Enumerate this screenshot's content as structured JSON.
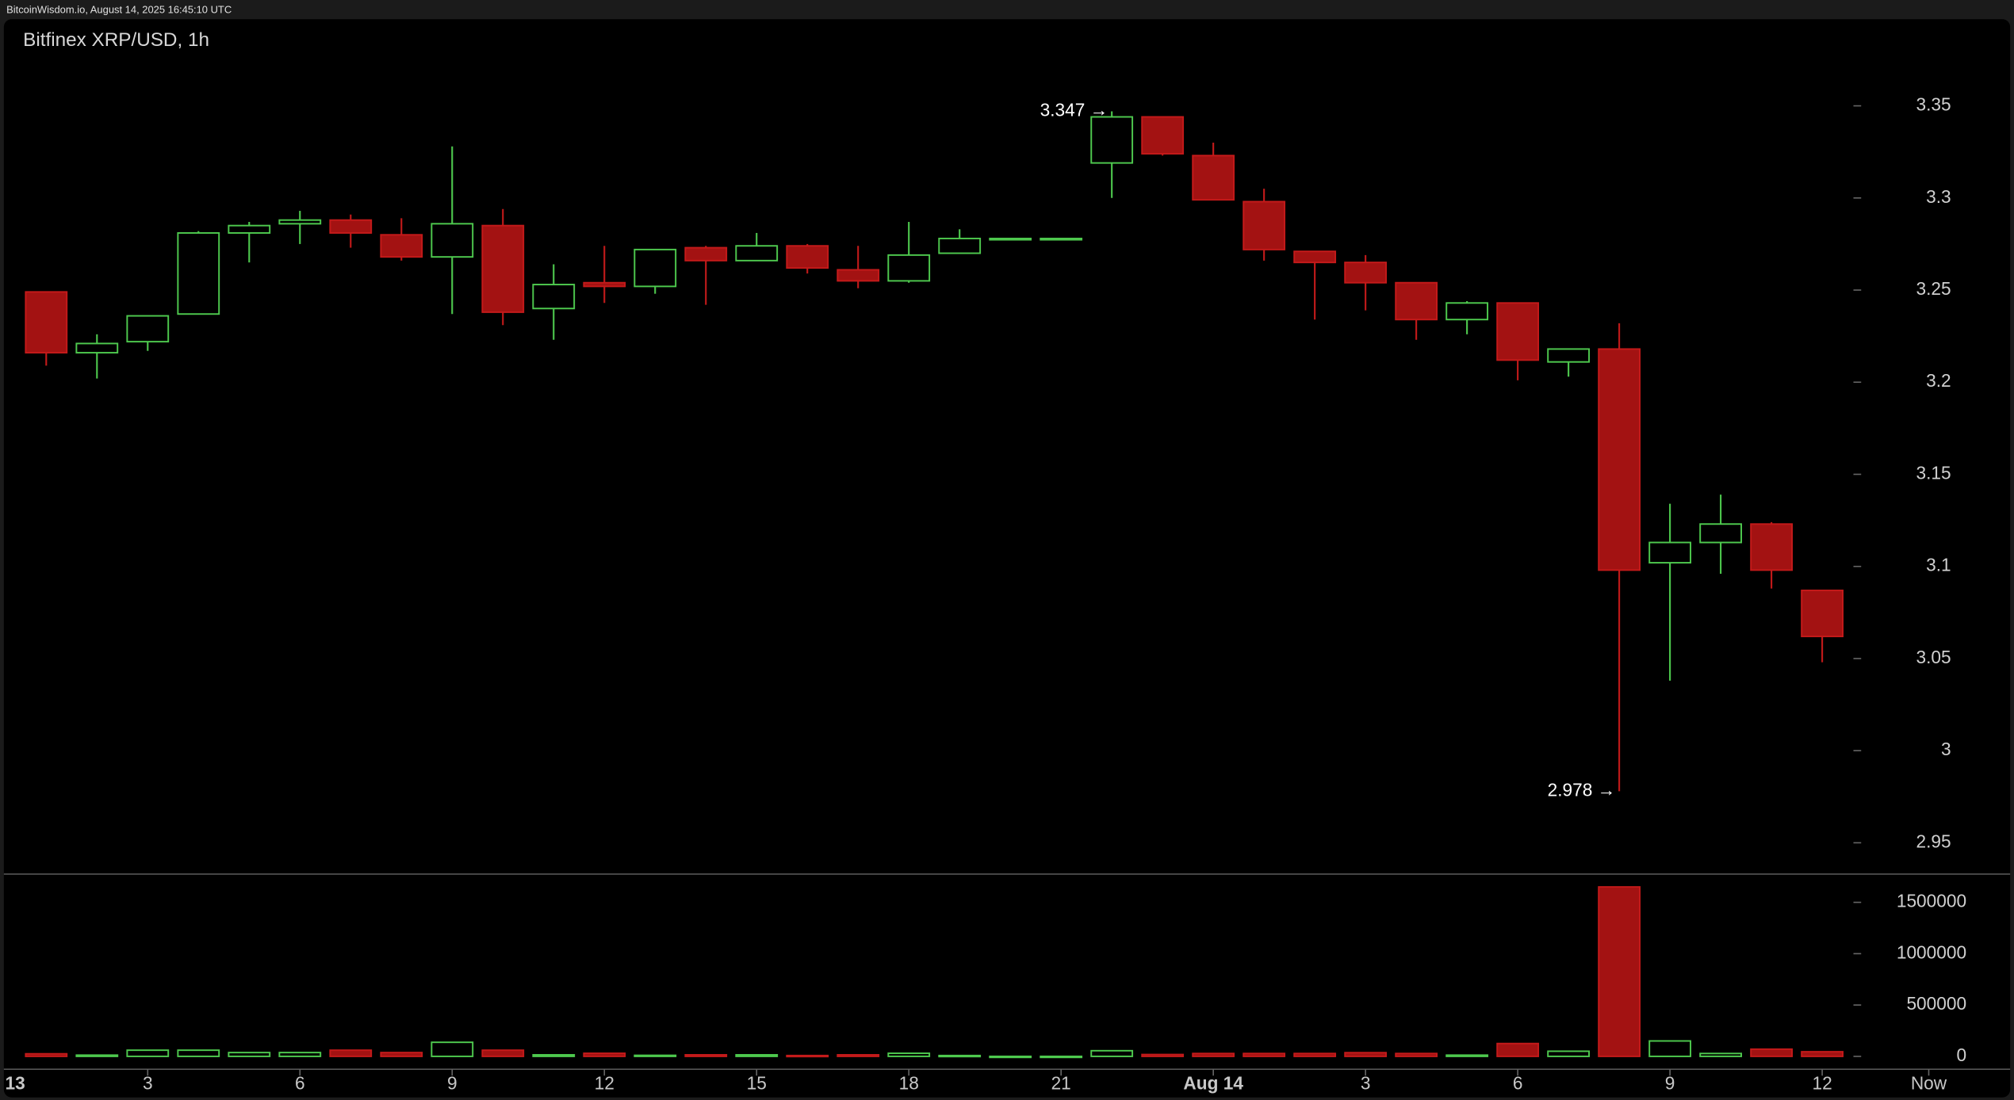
{
  "header": "BitcoinWisdom.io, August 14, 2025 16:45:10 UTC",
  "chart_data": {
    "type": "candlestick",
    "title": "Bitfinex XRP/USD, 1h",
    "x": [
      1,
      2,
      3,
      4,
      5,
      6,
      7,
      8,
      9,
      10,
      11,
      12,
      13,
      14,
      15,
      16,
      17,
      18,
      19,
      20,
      21,
      22,
      23,
      24,
      25,
      26,
      27,
      28,
      29,
      30,
      31,
      32,
      33,
      34,
      35,
      36
    ],
    "open": [
      3.249,
      3.216,
      3.222,
      3.237,
      3.281,
      3.286,
      3.288,
      3.28,
      3.268,
      3.285,
      3.24,
      3.254,
      3.252,
      3.273,
      3.266,
      3.274,
      3.261,
      3.255,
      3.27,
      3.278,
      3.278,
      3.319,
      3.344,
      3.323,
      3.298,
      3.271,
      3.265,
      3.254,
      3.234,
      3.243,
      3.211,
      3.218,
      3.102,
      3.113,
      3.123,
      3.087
    ],
    "high": [
      3.249,
      3.226,
      3.236,
      3.282,
      3.287,
      3.293,
      3.291,
      3.289,
      3.328,
      3.294,
      3.264,
      3.274,
      3.272,
      3.274,
      3.281,
      3.275,
      3.274,
      3.287,
      3.283,
      3.278,
      3.278,
      3.347,
      3.344,
      3.33,
      3.305,
      3.271,
      3.269,
      3.254,
      3.244,
      3.243,
      3.218,
      3.232,
      3.134,
      3.139,
      3.124,
      3.087
    ],
    "low": [
      3.209,
      3.202,
      3.217,
      3.237,
      3.265,
      3.275,
      3.273,
      3.266,
      3.237,
      3.231,
      3.223,
      3.243,
      3.248,
      3.242,
      3.266,
      3.259,
      3.251,
      3.254,
      3.27,
      3.278,
      3.278,
      3.3,
      3.323,
      3.299,
      3.266,
      3.234,
      3.239,
      3.223,
      3.226,
      3.201,
      3.203,
      2.978,
      3.038,
      3.096,
      3.088,
      3.048
    ],
    "close": [
      3.216,
      3.221,
      3.236,
      3.281,
      3.285,
      3.288,
      3.281,
      3.268,
      3.286,
      3.238,
      3.253,
      3.252,
      3.272,
      3.266,
      3.274,
      3.262,
      3.255,
      3.269,
      3.278,
      3.278,
      3.278,
      3.344,
      3.324,
      3.299,
      3.272,
      3.265,
      3.254,
      3.234,
      3.243,
      3.212,
      3.218,
      3.098,
      3.113,
      3.123,
      3.098,
      3.062
    ],
    "up_color": "#4ec94e",
    "down_color": "#a31212",
    "xlim": [
      0.089,
      39.78
    ],
    "xticks": [
      {
        "value": 0,
        "label": "13"
      },
      3,
      6,
      9,
      12,
      15,
      18,
      21,
      {
        "value": 24,
        "label": "Aug 14"
      },
      {
        "value": 27,
        "label": "3"
      },
      {
        "value": 30,
        "label": "6"
      },
      {
        "value": 33,
        "label": "9"
      },
      {
        "value": 36,
        "label": "12"
      },
      {
        "value": 38.1,
        "label": "Now"
      }
    ],
    "ylim": [
      2.933,
      3.397
    ],
    "yticks": [
      2.95,
      3,
      3.05,
      3.1,
      3.15,
      3.2,
      3.25,
      3.3,
      3.35
    ],
    "annotations": [
      {
        "label": "3.347 →",
        "x": 22,
        "y": 3.347
      },
      {
        "label": "2.978 →",
        "x": 32,
        "y": 2.978
      }
    ],
    "volume": {
      "values": [
        25000,
        12000,
        60000,
        60000,
        37000,
        37000,
        60000,
        37000,
        137000,
        60000,
        15000,
        30000,
        10000,
        15000,
        15000,
        8000,
        15000,
        30000,
        8000,
        0,
        0,
        55000,
        18000,
        28000,
        28000,
        28000,
        36000,
        28000,
        12000,
        125000,
        50000,
        1650000,
        150000,
        28000,
        70000,
        45000
      ],
      "ylim": [
        -125000,
        1775000
      ],
      "yticks": [
        0,
        500000,
        1000000,
        1500000
      ]
    }
  }
}
